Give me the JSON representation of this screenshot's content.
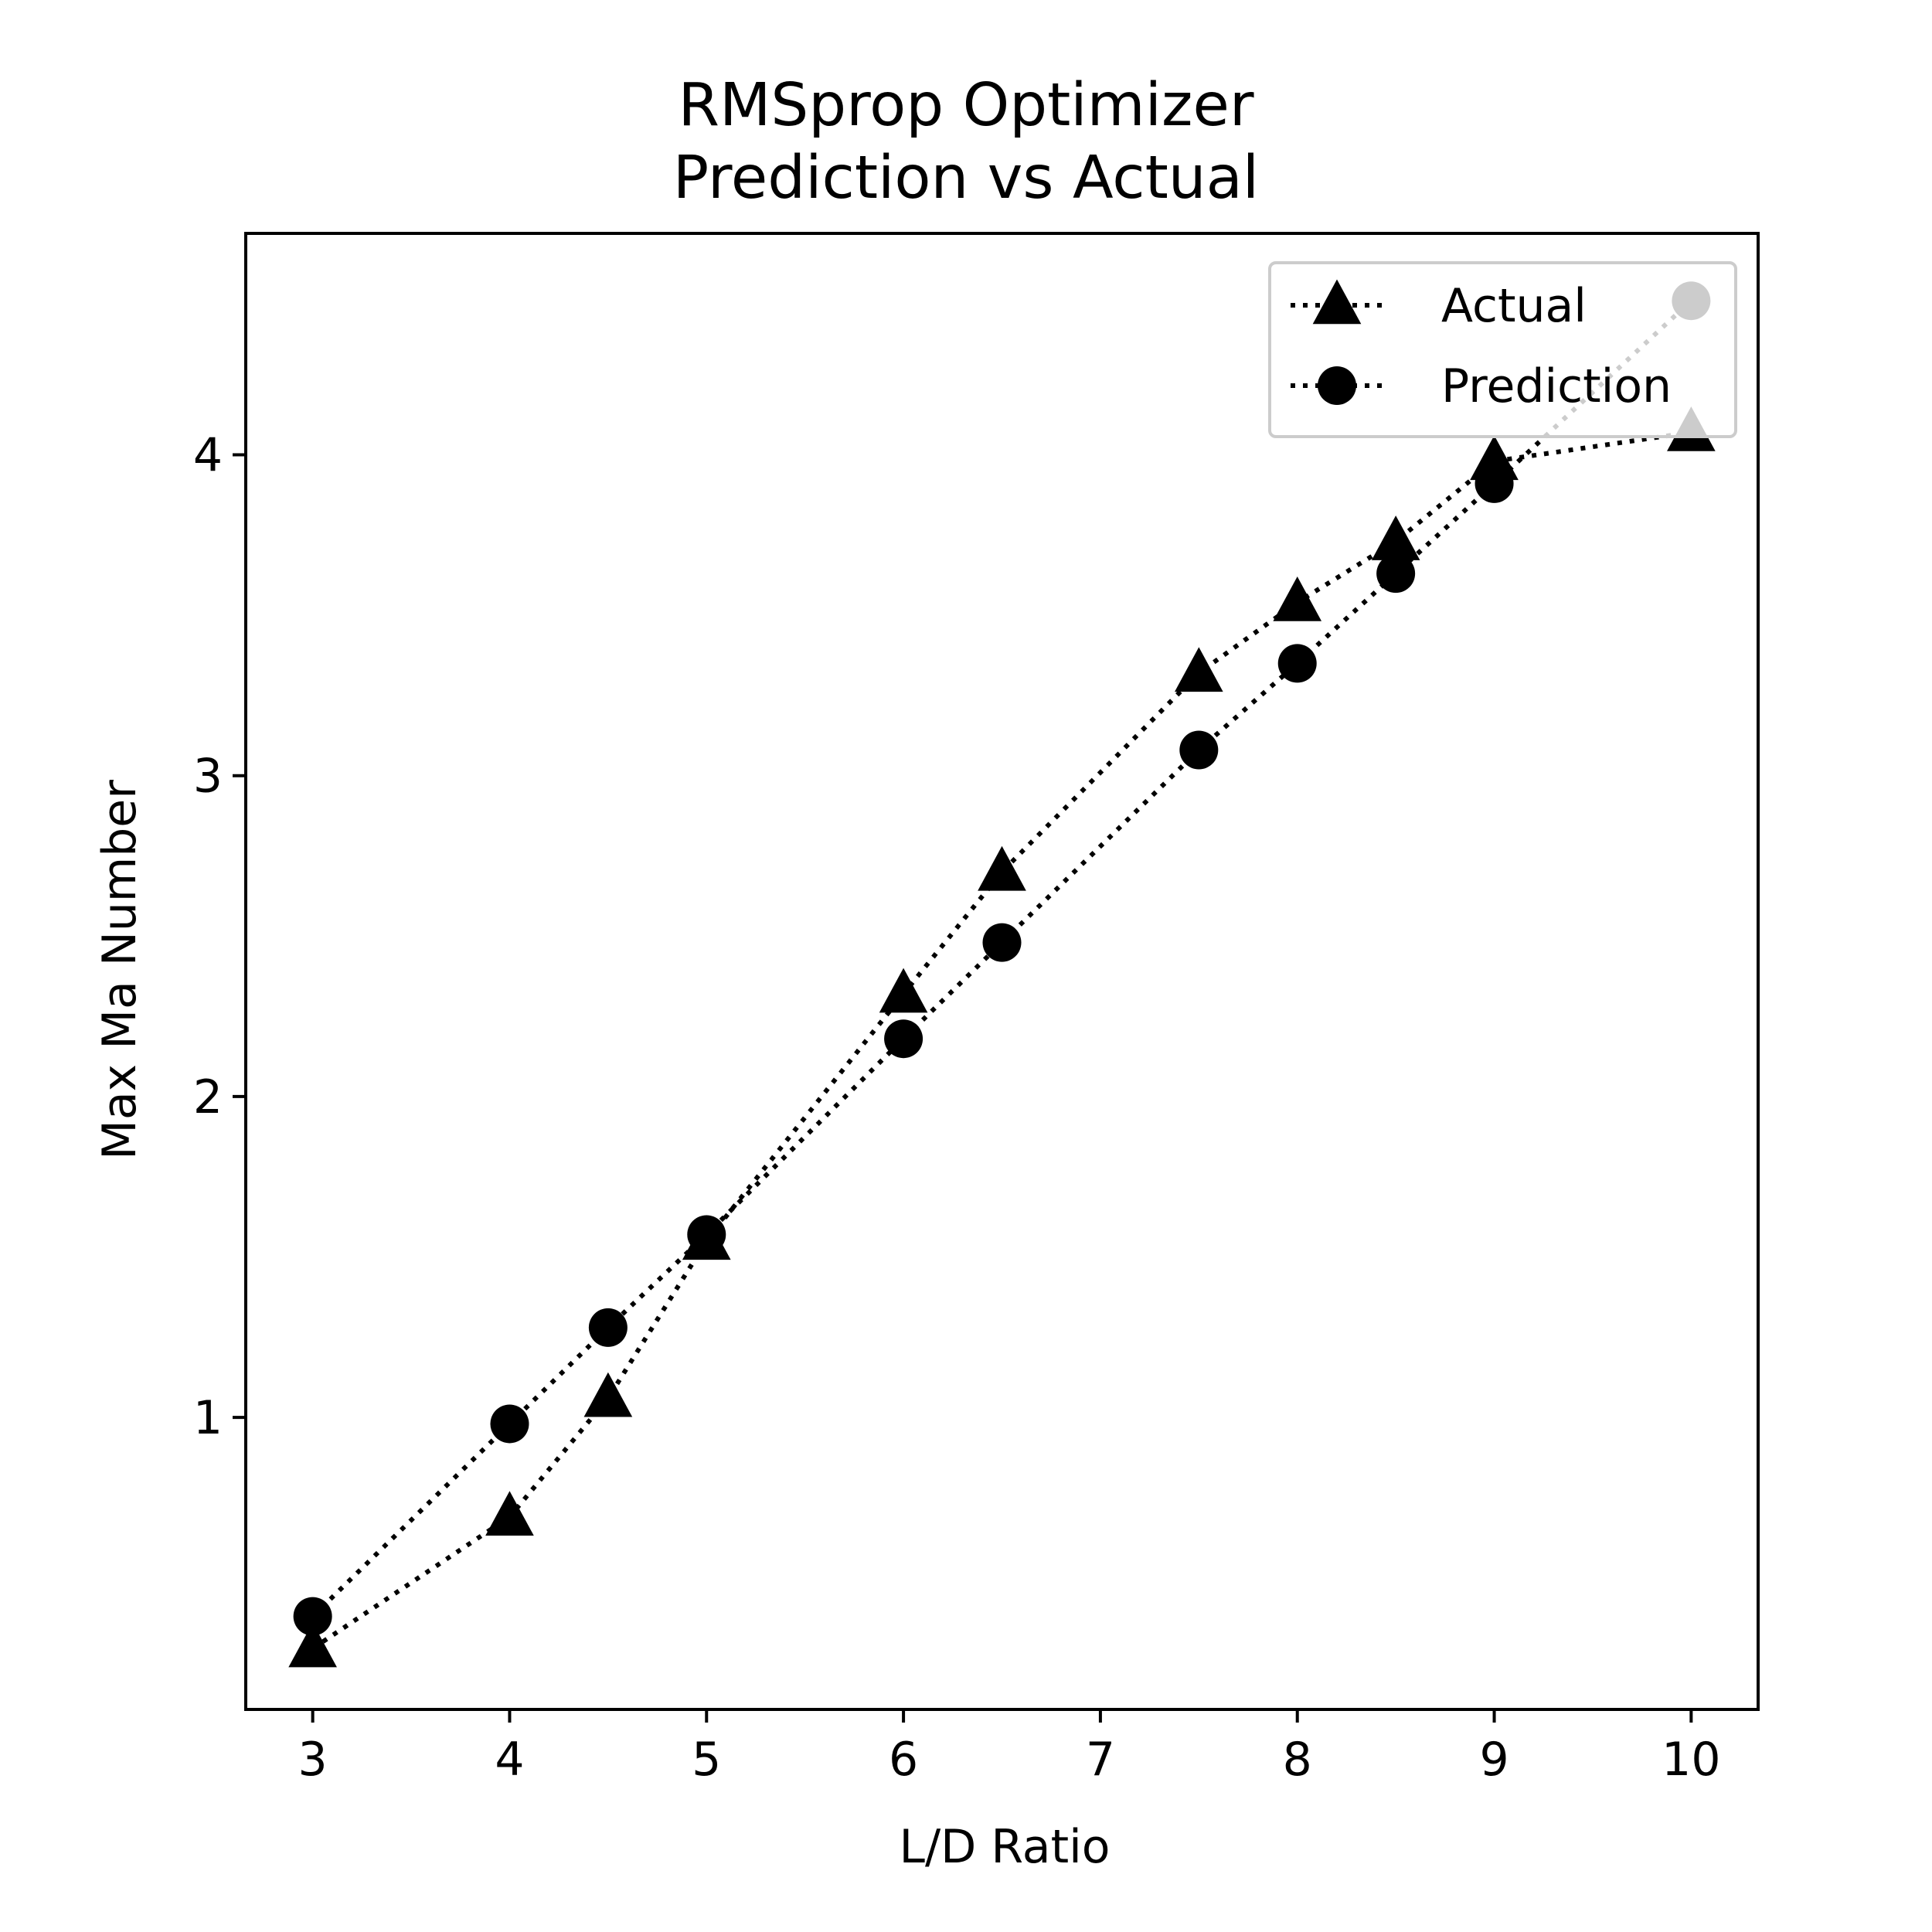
{
  "chart_data": {
    "type": "line",
    "title_line1": "RMSprop Optimizer",
    "title_line2": "Prediction vs Actual",
    "xlabel": "L/D Ratio",
    "ylabel": "Max Ma Number",
    "xlim": [
      2.66,
      10.34
    ],
    "ylim": [
      0.09,
      4.69
    ],
    "xticks": [
      3,
      4,
      5,
      6,
      7,
      8,
      9,
      10
    ],
    "yticks": [
      1,
      2,
      3,
      4
    ],
    "grid": false,
    "legend_position": "top-right",
    "series": [
      {
        "name": "Actual",
        "marker": "triangle",
        "linestyle": "dotted",
        "color": "#000000",
        "x": [
          3,
          4,
          4.5,
          5,
          6,
          6.5,
          7.5,
          8,
          8.5,
          9,
          10
        ],
        "y": [
          0.28,
          0.69,
          1.06,
          1.55,
          2.32,
          2.7,
          3.32,
          3.54,
          3.73,
          3.98,
          4.07
        ]
      },
      {
        "name": "Prediction",
        "marker": "circle",
        "linestyle": "dotted",
        "color": "#000000",
        "x": [
          3,
          4,
          4.5,
          5,
          6,
          6.5,
          7.5,
          8,
          8.5,
          9,
          10
        ],
        "y": [
          0.38,
          0.98,
          1.28,
          1.57,
          2.18,
          2.48,
          3.08,
          3.35,
          3.63,
          3.91,
          4.48
        ]
      }
    ]
  }
}
